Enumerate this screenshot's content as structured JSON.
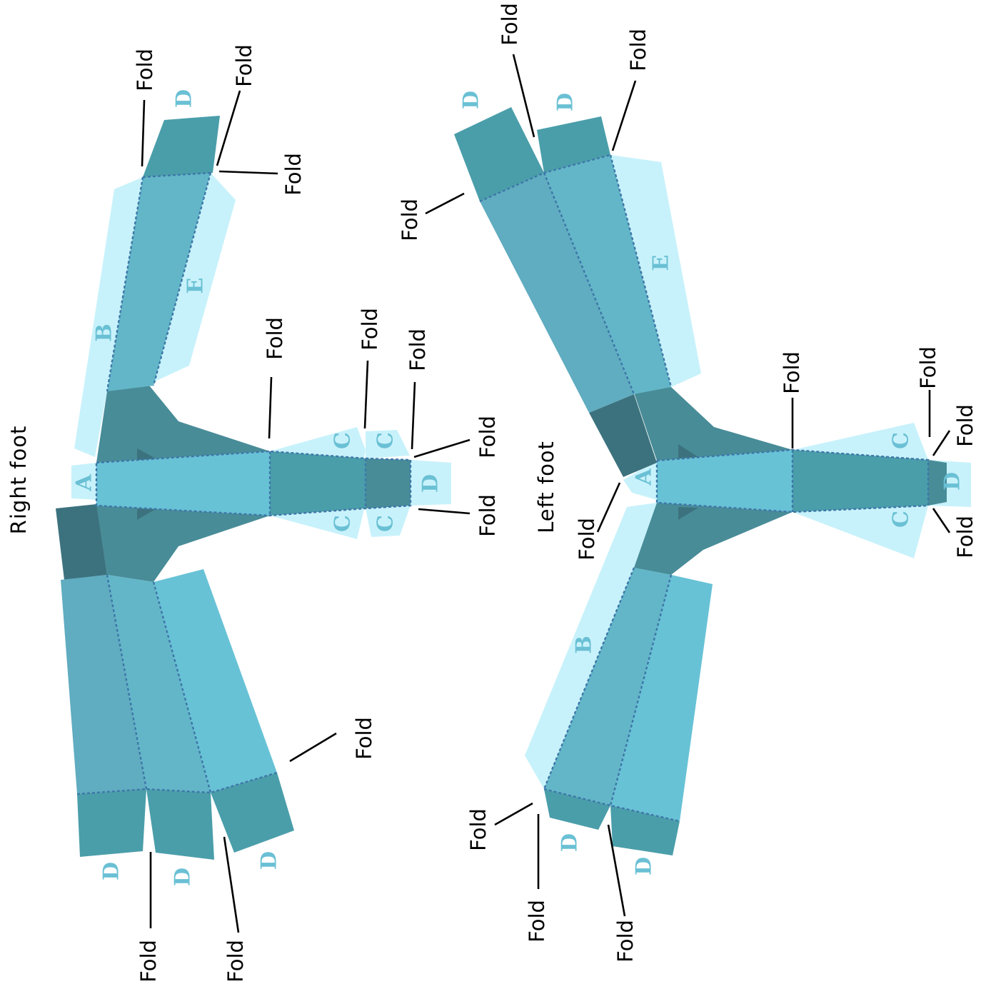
{
  "labels": {
    "right_foot": "Right foot",
    "left_foot": "Left foot",
    "fold": "Fold"
  },
  "tabs": {
    "a": "A",
    "b": "B",
    "c": "C",
    "d": "D",
    "e": "E"
  },
  "colors": {
    "glue_tab": "#c8f2fb",
    "panel_light": "#68c2d6",
    "panel_mid": "#63b6c8",
    "panel_soft": "#60acc0",
    "panel_dark": "#4a9eaa",
    "panel_darker": "#488c98",
    "panel_darkest": "#3c727e",
    "tab_letter": "#6ac0d4",
    "score_line": "#3d78a8"
  }
}
